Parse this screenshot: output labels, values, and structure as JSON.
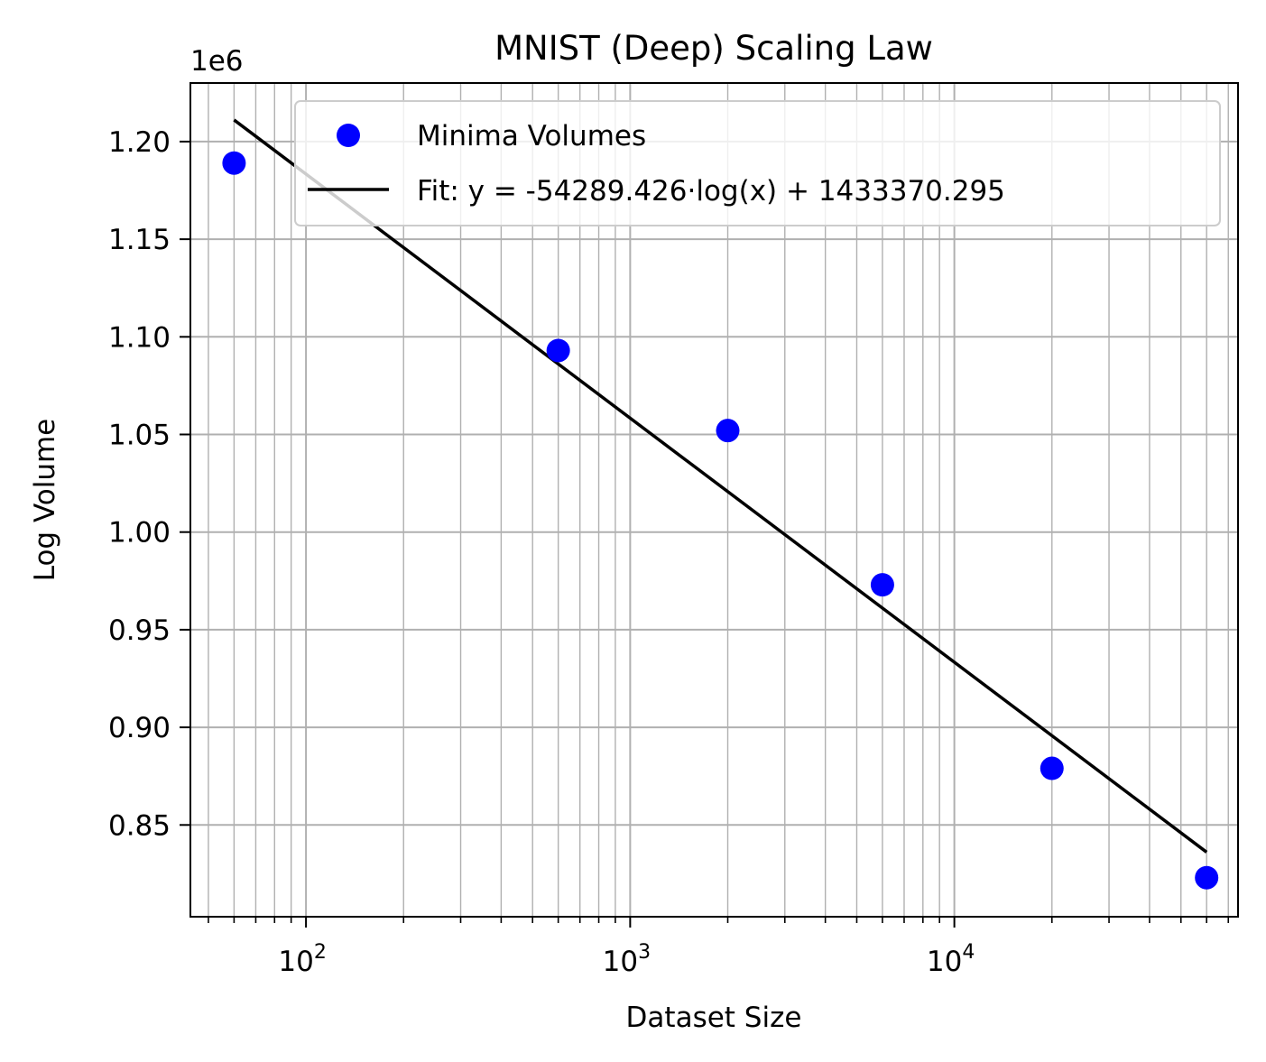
{
  "chart_data": {
    "type": "scatter",
    "title": "MNIST (Deep) Scaling Law",
    "xlabel": "Dataset Size",
    "ylabel": "Log Volume",
    "xscale": "log",
    "xlim": [
      44,
      75000
    ],
    "ylim": [
      803000,
      1230000
    ],
    "y_offset_label": "1e6",
    "x_ticks": [
      {
        "value": 100,
        "base": "10",
        "exp": "2"
      },
      {
        "value": 1000,
        "base": "10",
        "exp": "3"
      },
      {
        "value": 10000,
        "base": "10",
        "exp": "4"
      }
    ],
    "y_ticks": [
      {
        "value": 850000,
        "label": "0.85"
      },
      {
        "value": 900000,
        "label": "0.90"
      },
      {
        "value": 950000,
        "label": "0.95"
      },
      {
        "value": 1000000,
        "label": "1.00"
      },
      {
        "value": 1050000,
        "label": "1.05"
      },
      {
        "value": 1100000,
        "label": "1.10"
      },
      {
        "value": 1150000,
        "label": "1.15"
      },
      {
        "value": 1200000,
        "label": "1.20"
      }
    ],
    "grid": true,
    "series": [
      {
        "name": "Minima Volumes",
        "kind": "scatter",
        "color": "#0000ff",
        "x": [
          60,
          600,
          2000,
          6000,
          20000,
          60000
        ],
        "y": [
          1189000,
          1093000,
          1052000,
          973000,
          879000,
          823000
        ]
      },
      {
        "name": "Fit: y = -54289.426·log(x) + 1433370.295",
        "kind": "line",
        "color": "#000000",
        "slope": -54289.426,
        "intercept": 1433370.295,
        "x_range": [
          60,
          60000
        ]
      }
    ],
    "legend_position": "top-right"
  }
}
